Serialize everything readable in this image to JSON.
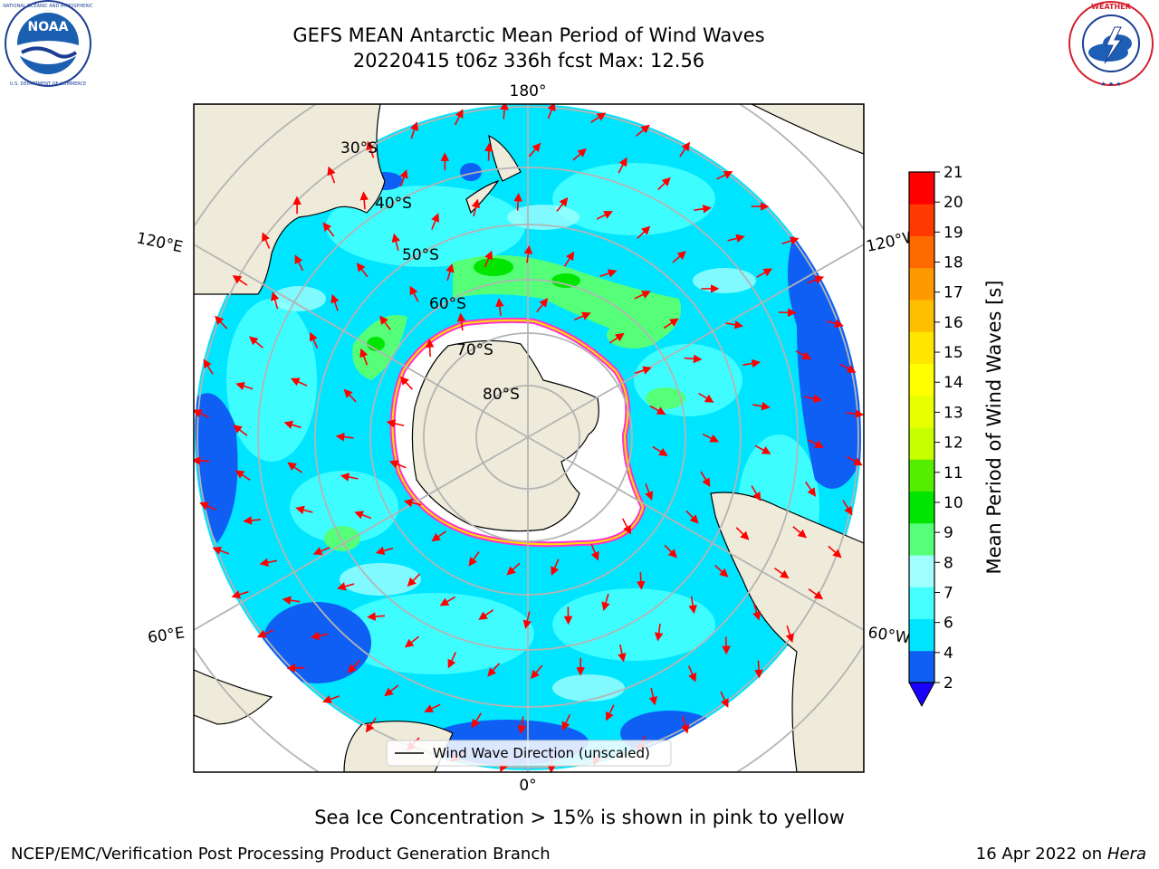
{
  "title": {
    "line1": "GEFS MEAN Antarctic Mean Period of Wind Waves",
    "line2": "20220415 t06z 336h fcst   Max: 12.56"
  },
  "logos": {
    "left": {
      "icon": "noaa-logo",
      "text": "NOAA",
      "ring_text": "NATIONAL OCEANIC AND ATMOSPHERIC ADMINISTRATION · U.S. DEPARTMENT OF COMMERCE"
    },
    "right": {
      "icon": "national-weather-service-logo",
      "ring_text": "NATIONAL WEATHER SERVICE"
    }
  },
  "map": {
    "projection": "south polar stereographic",
    "lon_labels": {
      "top": "180°",
      "bottom": "0°",
      "upper_left": "120°E",
      "upper_right": "120°W",
      "lower_left": "60°E",
      "lower_right": "60°W"
    },
    "lat_labels": [
      "30°S",
      "40°S",
      "50°S",
      "60°S",
      "70°S",
      "80°S"
    ],
    "legend": "Wind Wave Direction (unscaled)"
  },
  "colorbar": {
    "label": "Mean Period of Wind Waves [s]",
    "ticks": [
      "2",
      "4",
      "6",
      "7",
      "8",
      "9",
      "10",
      "11",
      "12",
      "13",
      "14",
      "15",
      "16",
      "17",
      "18",
      "19",
      "20",
      "21"
    ],
    "colors": [
      "#0f5ff5",
      "#00e5ff",
      "#45ffff",
      "#a0ffff",
      "#55ff77",
      "#00e600",
      "#55ee00",
      "#c8ff00",
      "#e8ff00",
      "#ffff00",
      "#ffe600",
      "#ffbf00",
      "#ff9900",
      "#ff6a00",
      "#ff3a00",
      "#ff0000"
    ],
    "extend_color": "#1a00ff"
  },
  "sea_ice_note": "Sea Ice Concentration > 15% is shown in pink to yellow",
  "footer": {
    "left": "NCEP/EMC/Verification Post Processing Product Generation Branch",
    "date": "16 Apr 2022 on ",
    "machine": "Hera"
  }
}
